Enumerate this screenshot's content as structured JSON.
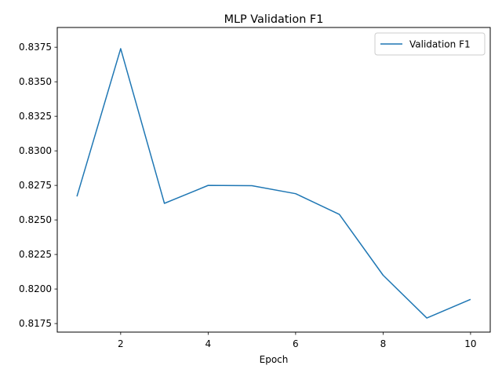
{
  "chart_data": {
    "type": "line",
    "title": "MLP Validation F1",
    "xlabel": "Epoch",
    "ylabel": "",
    "xlim": [
      0.55,
      10.45
    ],
    "ylim": [
      0.81688,
      0.83893
    ],
    "x_ticks": [
      2,
      4,
      6,
      8,
      10
    ],
    "y_ticks": [
      0.8175,
      0.82,
      0.8225,
      0.825,
      0.8275,
      0.83,
      0.8325,
      0.835,
      0.8375
    ],
    "grid": false,
    "legend": "top-right",
    "series": [
      {
        "name": "Validation F1",
        "color": "#1f77b4",
        "x": [
          1,
          2,
          3,
          4,
          5,
          6,
          7,
          8,
          9,
          10
        ],
        "y": [
          0.8267,
          0.8374,
          0.8262,
          0.8275,
          0.82748,
          0.8269,
          0.8254,
          0.821,
          0.8179,
          0.81925
        ]
      }
    ]
  }
}
